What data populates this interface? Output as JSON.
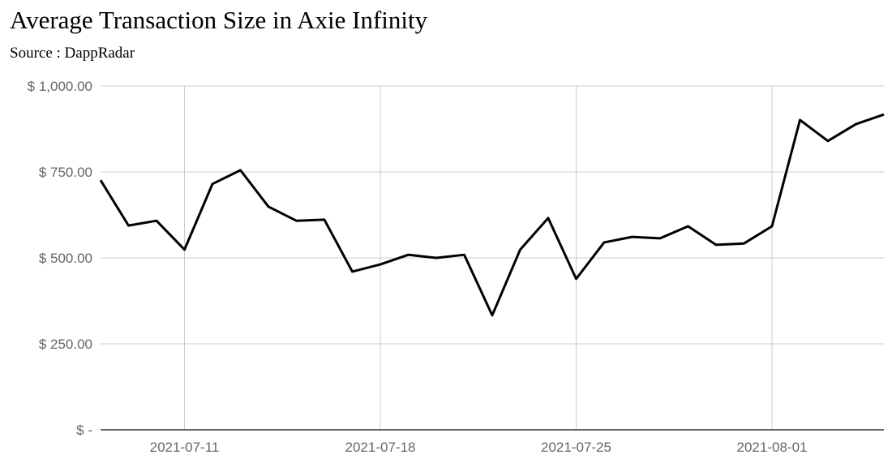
{
  "chart_data": {
    "type": "line",
    "title": "Average Transaction Size in Axie Infinity",
    "subtitle": "Source : DappRadar",
    "x": [
      "2021-07-08",
      "2021-07-09",
      "2021-07-10",
      "2021-07-11",
      "2021-07-12",
      "2021-07-13",
      "2021-07-14",
      "2021-07-15",
      "2021-07-16",
      "2021-07-17",
      "2021-07-18",
      "2021-07-19",
      "2021-07-20",
      "2021-07-21",
      "2021-07-22",
      "2021-07-23",
      "2021-07-24",
      "2021-07-25",
      "2021-07-26",
      "2021-07-27",
      "2021-07-28",
      "2021-07-29",
      "2021-07-30",
      "2021-07-31",
      "2021-08-01",
      "2021-08-02",
      "2021-08-03",
      "2021-08-04",
      "2021-08-05"
    ],
    "series": [
      {
        "name": "Average Transaction Size",
        "color": "#000000",
        "values": [
          726,
          594,
          608,
          524,
          715,
          755,
          649,
          608,
          611,
          460,
          481,
          509,
          500,
          509,
          333,
          524,
          616,
          439,
          545,
          561,
          557,
          592,
          538,
          542,
          592,
          901,
          840,
          889,
          917
        ]
      }
    ],
    "xlim": [
      "2021-07-08",
      "2021-08-05"
    ],
    "xticks": [
      "2021-07-11",
      "2021-07-18",
      "2021-07-25",
      "2021-08-01"
    ],
    "ylim": [
      0,
      1000
    ],
    "yticks": [
      {
        "value": 0,
        "label": "$ -"
      },
      {
        "value": 250,
        "label": "$ 250.00"
      },
      {
        "value": 500,
        "label": "$ 500.00"
      },
      {
        "value": 750,
        "label": "$ 750.00"
      },
      {
        "value": 1000,
        "label": "$ 1,000.00"
      }
    ],
    "grid": true
  }
}
